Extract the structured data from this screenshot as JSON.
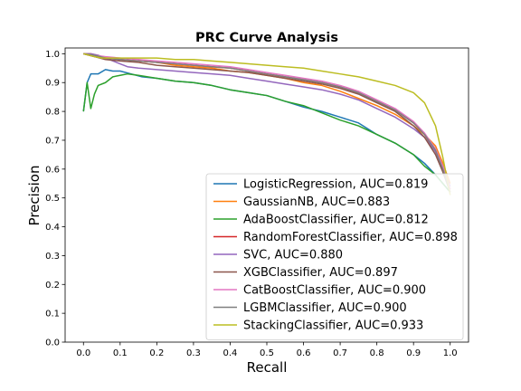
{
  "chart_data": {
    "type": "line",
    "title": "PRC Curve Analysis",
    "xlabel": "Recall",
    "ylabel": "Precision",
    "xlim": [
      -0.05,
      1.05
    ],
    "ylim": [
      0.0,
      1.02
    ],
    "xticks": [
      "0.0",
      "0.1",
      "0.2",
      "0.3",
      "0.4",
      "0.5",
      "0.6",
      "0.7",
      "0.8",
      "0.9",
      "1.0"
    ],
    "yticks": [
      "0.0",
      "0.1",
      "0.2",
      "0.3",
      "0.4",
      "0.5",
      "0.6",
      "0.7",
      "0.8",
      "0.9",
      "1.0"
    ],
    "grid": false,
    "legend_position": "lower-right",
    "series": [
      {
        "name": "LogisticRegression, AUC=0.819",
        "color": "#1f77b4",
        "x": [
          0.0,
          0.01,
          0.02,
          0.04,
          0.06,
          0.08,
          0.1,
          0.13,
          0.16,
          0.2,
          0.25,
          0.3,
          0.35,
          0.4,
          0.45,
          0.5,
          0.55,
          0.6,
          0.65,
          0.7,
          0.75,
          0.8,
          0.85,
          0.9,
          0.93,
          0.96,
          0.98,
          1.0
        ],
        "y": [
          0.8,
          0.9,
          0.93,
          0.93,
          0.945,
          0.94,
          0.94,
          0.93,
          0.92,
          0.915,
          0.905,
          0.9,
          0.89,
          0.875,
          0.865,
          0.855,
          0.835,
          0.815,
          0.8,
          0.78,
          0.76,
          0.72,
          0.69,
          0.65,
          0.62,
          0.58,
          0.55,
          0.52
        ]
      },
      {
        "name": "GaussianNB, AUC=0.883",
        "color": "#ff7f0e",
        "x": [
          0.0,
          0.02,
          0.05,
          0.1,
          0.15,
          0.2,
          0.25,
          0.3,
          0.35,
          0.4,
          0.45,
          0.5,
          0.55,
          0.6,
          0.65,
          0.7,
          0.75,
          0.8,
          0.85,
          0.9,
          0.93,
          0.96,
          0.98,
          1.0
        ],
        "y": [
          1.0,
          1.0,
          0.99,
          0.98,
          0.975,
          0.97,
          0.96,
          0.955,
          0.95,
          0.94,
          0.935,
          0.925,
          0.915,
          0.9,
          0.89,
          0.87,
          0.845,
          0.82,
          0.79,
          0.75,
          0.72,
          0.68,
          0.62,
          0.55
        ]
      },
      {
        "name": "AdaBoostClassifier, AUC=0.812",
        "color": "#2ca02c",
        "x": [
          0.0,
          0.01,
          0.02,
          0.03,
          0.04,
          0.06,
          0.08,
          0.1,
          0.12,
          0.15,
          0.2,
          0.25,
          0.3,
          0.35,
          0.4,
          0.45,
          0.5,
          0.55,
          0.6,
          0.65,
          0.7,
          0.75,
          0.8,
          0.85,
          0.9,
          0.93,
          0.96,
          0.98,
          1.0
        ],
        "y": [
          0.8,
          0.9,
          0.81,
          0.86,
          0.89,
          0.9,
          0.92,
          0.925,
          0.93,
          0.925,
          0.915,
          0.905,
          0.9,
          0.89,
          0.875,
          0.865,
          0.855,
          0.835,
          0.82,
          0.795,
          0.77,
          0.75,
          0.72,
          0.69,
          0.65,
          0.61,
          0.58,
          0.55,
          0.52
        ]
      },
      {
        "name": "RandomForestClassifier, AUC=0.898",
        "color": "#d62728",
        "x": [
          0.0,
          0.03,
          0.06,
          0.1,
          0.15,
          0.2,
          0.25,
          0.3,
          0.35,
          0.4,
          0.45,
          0.5,
          0.55,
          0.6,
          0.65,
          0.7,
          0.75,
          0.8,
          0.85,
          0.9,
          0.93,
          0.96,
          0.98,
          1.0
        ],
        "y": [
          1.0,
          0.99,
          0.985,
          0.98,
          0.975,
          0.97,
          0.965,
          0.96,
          0.955,
          0.95,
          0.94,
          0.93,
          0.92,
          0.91,
          0.9,
          0.885,
          0.865,
          0.835,
          0.805,
          0.76,
          0.72,
          0.66,
          0.6,
          0.53
        ]
      },
      {
        "name": "SVC, AUC=0.880",
        "color": "#9467bd",
        "x": [
          0.0,
          0.02,
          0.04,
          0.06,
          0.08,
          0.1,
          0.12,
          0.15,
          0.2,
          0.25,
          0.3,
          0.35,
          0.4,
          0.45,
          0.5,
          0.55,
          0.6,
          0.65,
          0.7,
          0.75,
          0.8,
          0.85,
          0.9,
          0.93,
          0.96,
          0.98,
          1.0
        ],
        "y": [
          1.0,
          1.0,
          0.995,
          0.985,
          0.975,
          0.965,
          0.955,
          0.95,
          0.945,
          0.94,
          0.935,
          0.93,
          0.925,
          0.915,
          0.905,
          0.895,
          0.885,
          0.875,
          0.86,
          0.84,
          0.81,
          0.78,
          0.74,
          0.71,
          0.66,
          0.6,
          0.54
        ]
      },
      {
        "name": "XGBClassifier, AUC=0.897",
        "color": "#8c564b",
        "x": [
          0.0,
          0.03,
          0.06,
          0.1,
          0.15,
          0.2,
          0.25,
          0.3,
          0.35,
          0.4,
          0.45,
          0.5,
          0.55,
          0.6,
          0.65,
          0.7,
          0.75,
          0.8,
          0.85,
          0.9,
          0.93,
          0.96,
          0.98,
          1.0
        ],
        "y": [
          1.0,
          0.99,
          0.98,
          0.975,
          0.97,
          0.96,
          0.955,
          0.95,
          0.945,
          0.94,
          0.935,
          0.925,
          0.915,
          0.905,
          0.895,
          0.88,
          0.86,
          0.83,
          0.8,
          0.75,
          0.71,
          0.65,
          0.59,
          0.52
        ]
      },
      {
        "name": "CatBoostClassifier, AUC=0.900",
        "color": "#e377c2",
        "x": [
          0.0,
          0.03,
          0.06,
          0.1,
          0.15,
          0.2,
          0.25,
          0.3,
          0.35,
          0.4,
          0.45,
          0.5,
          0.55,
          0.6,
          0.65,
          0.7,
          0.75,
          0.8,
          0.85,
          0.9,
          0.93,
          0.96,
          0.98,
          1.0
        ],
        "y": [
          1.0,
          0.995,
          0.99,
          0.985,
          0.98,
          0.975,
          0.97,
          0.965,
          0.96,
          0.955,
          0.945,
          0.935,
          0.925,
          0.915,
          0.905,
          0.89,
          0.87,
          0.84,
          0.81,
          0.765,
          0.725,
          0.67,
          0.61,
          0.53
        ]
      },
      {
        "name": "LGBMClassifier, AUC=0.900",
        "color": "#7f7f7f",
        "x": [
          0.0,
          0.03,
          0.06,
          0.1,
          0.15,
          0.2,
          0.25,
          0.3,
          0.35,
          0.4,
          0.45,
          0.5,
          0.55,
          0.6,
          0.65,
          0.7,
          0.75,
          0.8,
          0.85,
          0.9,
          0.93,
          0.96,
          0.98,
          1.0
        ],
        "y": [
          1.0,
          0.995,
          0.985,
          0.98,
          0.975,
          0.97,
          0.965,
          0.96,
          0.955,
          0.95,
          0.94,
          0.93,
          0.92,
          0.91,
          0.9,
          0.885,
          0.865,
          0.835,
          0.805,
          0.76,
          0.72,
          0.665,
          0.6,
          0.52
        ]
      },
      {
        "name": "StackingClassifier, AUC=0.933",
        "color": "#bcbd22",
        "x": [
          0.0,
          0.03,
          0.05,
          0.1,
          0.15,
          0.2,
          0.25,
          0.3,
          0.35,
          0.4,
          0.45,
          0.5,
          0.55,
          0.6,
          0.65,
          0.7,
          0.75,
          0.8,
          0.85,
          0.9,
          0.93,
          0.96,
          0.98,
          1.0
        ],
        "y": [
          1.0,
          0.99,
          0.985,
          0.985,
          0.985,
          0.985,
          0.98,
          0.98,
          0.975,
          0.97,
          0.965,
          0.96,
          0.955,
          0.95,
          0.94,
          0.93,
          0.92,
          0.905,
          0.89,
          0.865,
          0.83,
          0.75,
          0.64,
          0.51
        ]
      }
    ]
  }
}
